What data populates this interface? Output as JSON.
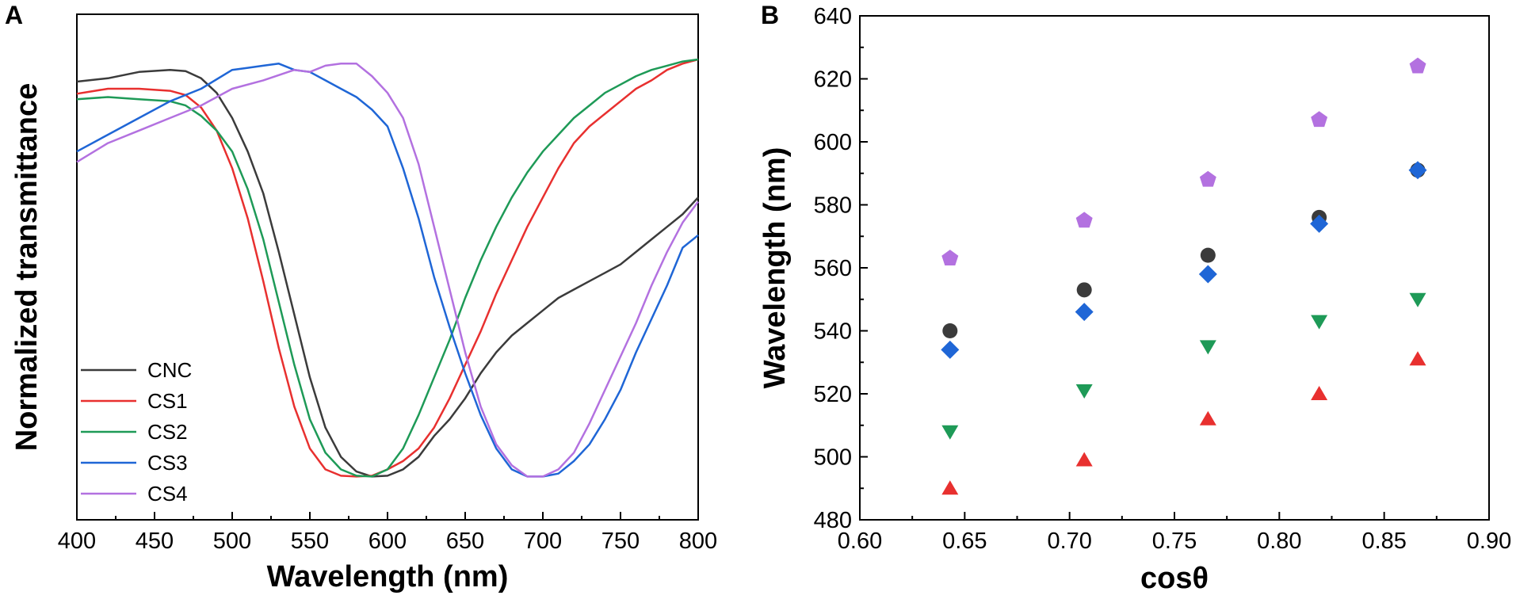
{
  "colors": {
    "CNC": "#3b3b3b",
    "CS1": "#e8302f",
    "CS2": "#1e9a57",
    "CS3": "#1f66d6",
    "CS4": "#b371e0"
  },
  "chart_data": [
    {
      "panel": "A",
      "type": "line",
      "title": "",
      "xlabel": "Wavelength (nm)",
      "ylabel": "Normalized transmittance",
      "xlim": [
        400,
        800
      ],
      "ylim": [
        0,
        1
      ],
      "xticks": [
        "400",
        "450",
        "500",
        "550",
        "600",
        "650",
        "700",
        "750",
        "800"
      ],
      "yticks": [],
      "legend_position": "bottom-left",
      "series": [
        {
          "name": "CNC",
          "color_key": "CNC",
          "x": [
            400,
            420,
            440,
            460,
            470,
            480,
            490,
            500,
            510,
            520,
            530,
            540,
            550,
            560,
            570,
            580,
            590,
            600,
            610,
            620,
            630,
            640,
            650,
            660,
            670,
            680,
            690,
            700,
            710,
            720,
            730,
            740,
            750,
            760,
            770,
            780,
            790,
            800
          ],
          "y": [
            0.947,
            0.955,
            0.97,
            0.975,
            0.972,
            0.955,
            0.92,
            0.86,
            0.78,
            0.68,
            0.54,
            0.39,
            0.24,
            0.12,
            0.05,
            0.015,
            0.003,
            0.005,
            0.02,
            0.05,
            0.1,
            0.14,
            0.19,
            0.25,
            0.3,
            0.34,
            0.37,
            0.4,
            0.43,
            0.45,
            0.47,
            0.49,
            0.51,
            0.54,
            0.57,
            0.6,
            0.63,
            0.67
          ]
        },
        {
          "name": "CS1",
          "color_key": "CS1",
          "x": [
            400,
            420,
            440,
            460,
            470,
            480,
            490,
            500,
            510,
            520,
            530,
            540,
            550,
            560,
            570,
            580,
            590,
            600,
            610,
            620,
            630,
            640,
            650,
            660,
            670,
            680,
            690,
            700,
            710,
            720,
            730,
            740,
            750,
            760,
            770,
            780,
            790,
            800
          ],
          "y": [
            0.918,
            0.93,
            0.93,
            0.925,
            0.915,
            0.885,
            0.83,
            0.74,
            0.62,
            0.47,
            0.31,
            0.17,
            0.07,
            0.02,
            0.005,
            0.003,
            0.005,
            0.02,
            0.04,
            0.07,
            0.12,
            0.19,
            0.27,
            0.35,
            0.44,
            0.52,
            0.6,
            0.67,
            0.74,
            0.8,
            0.84,
            0.87,
            0.9,
            0.93,
            0.95,
            0.975,
            0.99,
            1.0
          ]
        },
        {
          "name": "CS2",
          "color_key": "CS2",
          "x": [
            400,
            420,
            440,
            460,
            470,
            480,
            490,
            500,
            510,
            520,
            530,
            540,
            550,
            560,
            570,
            580,
            590,
            600,
            610,
            620,
            630,
            640,
            650,
            660,
            670,
            680,
            690,
            700,
            710,
            720,
            730,
            740,
            750,
            760,
            770,
            780,
            790,
            800
          ],
          "y": [
            0.905,
            0.91,
            0.905,
            0.9,
            0.89,
            0.865,
            0.83,
            0.78,
            0.69,
            0.57,
            0.42,
            0.27,
            0.14,
            0.06,
            0.02,
            0.005,
            0.003,
            0.02,
            0.07,
            0.15,
            0.24,
            0.33,
            0.43,
            0.52,
            0.6,
            0.67,
            0.73,
            0.78,
            0.82,
            0.86,
            0.89,
            0.92,
            0.94,
            0.96,
            0.975,
            0.985,
            0.995,
            1.0
          ]
        },
        {
          "name": "CS3",
          "color_key": "CS3",
          "x": [
            400,
            420,
            440,
            460,
            480,
            500,
            510,
            520,
            530,
            540,
            550,
            560,
            570,
            580,
            590,
            600,
            610,
            620,
            630,
            640,
            650,
            660,
            670,
            680,
            690,
            700,
            710,
            720,
            730,
            740,
            750,
            760,
            770,
            780,
            790,
            800
          ],
          "y": [
            0.78,
            0.82,
            0.86,
            0.9,
            0.93,
            0.975,
            0.98,
            0.985,
            0.99,
            0.975,
            0.97,
            0.95,
            0.93,
            0.91,
            0.88,
            0.84,
            0.74,
            0.62,
            0.48,
            0.36,
            0.25,
            0.15,
            0.07,
            0.02,
            0.003,
            0.003,
            0.01,
            0.04,
            0.08,
            0.14,
            0.21,
            0.3,
            0.38,
            0.46,
            0.55,
            0.58
          ]
        },
        {
          "name": "CS4",
          "color_key": "CS4",
          "x": [
            400,
            420,
            440,
            460,
            480,
            500,
            520,
            540,
            550,
            560,
            570,
            580,
            590,
            600,
            610,
            620,
            630,
            640,
            650,
            660,
            670,
            680,
            690,
            700,
            710,
            720,
            730,
            740,
            750,
            760,
            770,
            780,
            790,
            800
          ],
          "y": [
            0.755,
            0.8,
            0.83,
            0.86,
            0.89,
            0.93,
            0.95,
            0.975,
            0.97,
            0.985,
            0.99,
            0.99,
            0.96,
            0.92,
            0.86,
            0.75,
            0.6,
            0.45,
            0.3,
            0.17,
            0.08,
            0.03,
            0.003,
            0.003,
            0.02,
            0.06,
            0.13,
            0.21,
            0.29,
            0.37,
            0.46,
            0.54,
            0.61,
            0.66
          ]
        }
      ]
    },
    {
      "panel": "B",
      "type": "scatter",
      "title": "",
      "xlabel": "cosθ",
      "ylabel": "Wavelength (nm)",
      "xlim": [
        0.6,
        0.9
      ],
      "ylim": [
        480,
        640
      ],
      "xticks": [
        "0.60",
        "0.65",
        "0.70",
        "0.75",
        "0.80",
        "0.85",
        "0.90"
      ],
      "yticks": [
        "480",
        "500",
        "520",
        "540",
        "560",
        "580",
        "600",
        "620",
        "640"
      ],
      "series": [
        {
          "name": "CNC",
          "color_key": "CNC",
          "marker": "circle",
          "x": [
            0.643,
            0.707,
            0.766,
            0.819,
            0.866
          ],
          "y": [
            540,
            553,
            564,
            576,
            591
          ]
        },
        {
          "name": "CS1",
          "color_key": "CS1",
          "marker": "triangle-up",
          "x": [
            0.643,
            0.707,
            0.766,
            0.819,
            0.866
          ],
          "y": [
            490,
            499,
            512,
            520,
            531
          ]
        },
        {
          "name": "CS2",
          "color_key": "CS2",
          "marker": "triangle-down",
          "x": [
            0.643,
            0.707,
            0.766,
            0.819,
            0.866
          ],
          "y": [
            508,
            521,
            535,
            543,
            550
          ]
        },
        {
          "name": "CS3",
          "color_key": "CS3",
          "marker": "diamond",
          "x": [
            0.643,
            0.707,
            0.766,
            0.819,
            0.866
          ],
          "y": [
            534,
            546,
            558,
            574,
            591
          ]
        },
        {
          "name": "CS4",
          "color_key": "CS4",
          "marker": "pentagon",
          "x": [
            0.643,
            0.707,
            0.766,
            0.819,
            0.866
          ],
          "y": [
            563,
            575,
            588,
            607,
            624
          ]
        }
      ]
    }
  ],
  "labels": {
    "panel_a": "A",
    "panel_b": "B"
  }
}
